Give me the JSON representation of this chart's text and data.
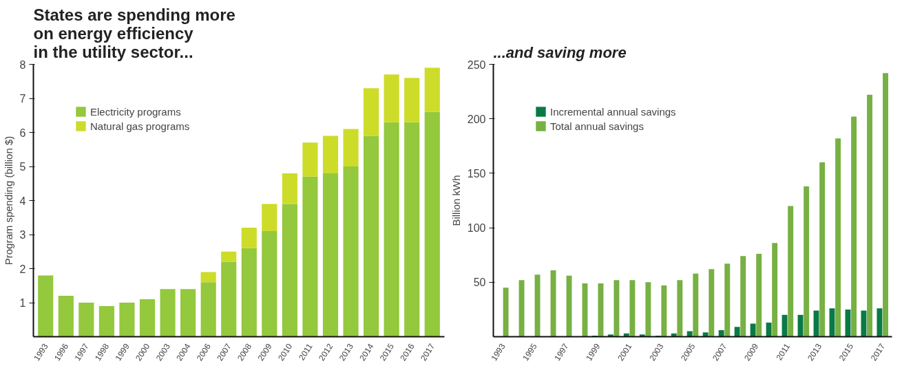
{
  "chart_data": [
    {
      "type": "bar",
      "title": "States are spending more\non energy efficiency\nin the utility sector...",
      "ylabel": "Program spending (billion $)",
      "stacked": true,
      "legend": "top left",
      "ylim": [
        0,
        8
      ],
      "yticks": [
        1,
        2,
        3,
        4,
        5,
        6,
        7,
        8
      ],
      "categories": [
        "1993",
        "1996",
        "1997",
        "1998",
        "1999",
        "2000",
        "2003",
        "2004",
        "2006",
        "2007",
        "2008",
        "2009",
        "2010",
        "2011",
        "2012",
        "2013",
        "2014",
        "2015",
        "2016",
        "2017"
      ],
      "series": [
        {
          "name": "Electricity programs",
          "color": "#94c83d",
          "values": [
            1.8,
            1.2,
            1.0,
            0.9,
            1.0,
            1.1,
            1.4,
            1.4,
            1.6,
            2.2,
            2.6,
            3.1,
            3.9,
            4.7,
            4.8,
            5.0,
            5.9,
            6.3,
            6.3,
            6.6
          ]
        },
        {
          "name": "Natural gas programs",
          "color": "#cddc29",
          "values": [
            null,
            null,
            null,
            null,
            null,
            null,
            null,
            null,
            0.3,
            0.3,
            0.6,
            0.8,
            0.9,
            1.0,
            1.1,
            1.1,
            1.4,
            1.4,
            1.3,
            1.3
          ]
        }
      ]
    },
    {
      "type": "bar",
      "title": "...and saving more",
      "ylabel": "Billion kWh",
      "legend": "top left",
      "ylim": [
        0,
        250
      ],
      "yticks": [
        50,
        100,
        150,
        200,
        250
      ],
      "categories": [
        "1993",
        null,
        "1995",
        null,
        "1997",
        null,
        "1999",
        null,
        "2001",
        null,
        "2003",
        null,
        "2005",
        null,
        "2007",
        null,
        "2009",
        null,
        "2011",
        null,
        "2013",
        null,
        "2015",
        null,
        "2017"
      ],
      "series": [
        {
          "name": "Incremental annual savings",
          "color": "#0a7a44",
          "values": [
            null,
            null,
            null,
            null,
            null,
            null,
            1,
            2,
            3,
            2,
            1,
            3,
            5,
            4,
            6,
            9,
            12,
            13,
            20,
            20,
            24,
            26,
            25,
            24,
            26
          ]
        },
        {
          "name": "Total annual savings",
          "color": "#77b043",
          "values": [
            45,
            52,
            57,
            61,
            56,
            49,
            49,
            52,
            52,
            50,
            47,
            52,
            58,
            62,
            67,
            74,
            76,
            86,
            120,
            138,
            160,
            182,
            202,
            222,
            242
          ]
        }
      ]
    }
  ]
}
